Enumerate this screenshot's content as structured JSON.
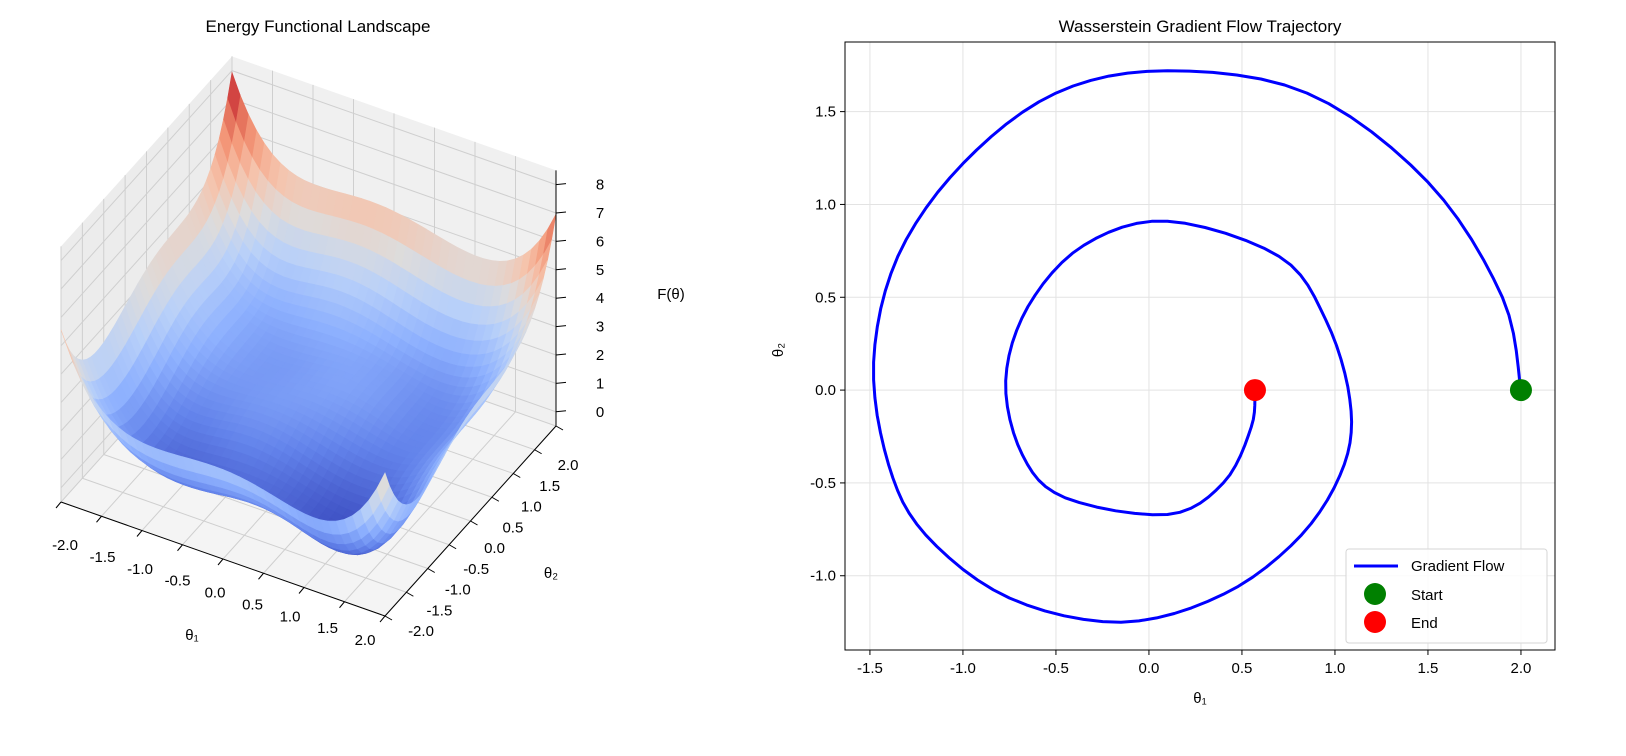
{
  "chart_data": [
    {
      "type": "surface",
      "title": "Energy Functional Landscape",
      "xlabel": "θ₁",
      "ylabel": "θ₂",
      "zlabel": "F(θ)",
      "xlim": [
        -2,
        2
      ],
      "ylim": [
        -2,
        2
      ],
      "zlim": [
        -0.5,
        8.5
      ],
      "xticks": [
        "-2.0",
        "-1.5",
        "-1.0",
        "-0.5",
        "0.0",
        "0.5",
        "1.0",
        "1.5",
        "2.0"
      ],
      "yticks": [
        "-2.0",
        "-1.5",
        "-1.0",
        "-0.5",
        "0.0",
        "0.5",
        "1.0",
        "1.5",
        "2.0"
      ],
      "zticks": [
        "0",
        "1",
        "2",
        "3",
        "4",
        "5",
        "6",
        "7",
        "8"
      ],
      "colormap": "coolwarm",
      "surface_model": {
        "a": 0.3,
        "bx": -0.25,
        "cy": 0.6,
        "d": 0.85,
        "wobble": 0.15,
        "grid": 40
      },
      "colors": {
        "low": "#3b4cc0",
        "mid": "#dddcdc",
        "high": "#b40426",
        "pane": "#f2f2f2",
        "grid": "#cfcfcf"
      }
    },
    {
      "type": "line",
      "title": "Wasserstein Gradient Flow Trajectory",
      "xlabel": "θ₁",
      "ylabel": "θ₂",
      "xlim": [
        -1.634,
        2.183
      ],
      "ylim": [
        -1.4,
        1.875
      ],
      "xticks": [
        -1.5,
        -1.0,
        -0.5,
        0.0,
        0.5,
        1.0,
        1.5,
        2.0
      ],
      "yticks": [
        -1.0,
        -0.5,
        0.0,
        0.5,
        1.0,
        1.5
      ],
      "xtick_labels": [
        "-1.5",
        "-1.0",
        "-0.5",
        "0.0",
        "0.5",
        "1.0",
        "1.5",
        "2.0"
      ],
      "ytick_labels": [
        "-1.0",
        "-0.5",
        "0.0",
        "0.5",
        "1.0",
        "1.5"
      ],
      "grid": true,
      "legend_position": "lower-right",
      "series": [
        {
          "name": "Gradient Flow",
          "color": "#0000ff",
          "points": [
            [
              2.0,
              0
            ],
            [
              1.9,
              0.5
            ],
            [
              1.5,
              1.12
            ],
            [
              0.85,
              1.6
            ],
            [
              0.1,
              1.72
            ],
            [
              -0.5,
              1.6
            ],
            [
              -1.0,
              1.22
            ],
            [
              -1.35,
              0.72
            ],
            [
              -1.48,
              0.15
            ],
            [
              -1.4,
              -0.4
            ],
            [
              -1.2,
              -0.78
            ],
            [
              -0.75,
              -1.12
            ],
            [
              -0.15,
              -1.25
            ],
            [
              0.4,
              -1.1
            ],
            [
              0.82,
              -0.78
            ],
            [
              1.05,
              -0.4
            ],
            [
              1.08,
              -0.05
            ],
            [
              0.95,
              0.38
            ],
            [
              0.7,
              0.72
            ],
            [
              0.1,
              0.91
            ],
            [
              -0.35,
              0.78
            ],
            [
              -0.65,
              0.45
            ],
            [
              -0.77,
              0.05
            ],
            [
              -0.68,
              -0.35
            ],
            [
              -0.45,
              -0.58
            ],
            [
              0.1,
              -0.67
            ],
            [
              0.4,
              -0.5
            ],
            [
              0.55,
              -0.2
            ],
            [
              0.57,
              0
            ]
          ]
        },
        {
          "name": "Start",
          "color": "#008000",
          "points": [
            [
              2.0,
              0.0
            ]
          ]
        },
        {
          "name": "End",
          "color": "#ff0000",
          "points": [
            [
              0.57,
              0.0
            ]
          ]
        }
      ]
    }
  ]
}
